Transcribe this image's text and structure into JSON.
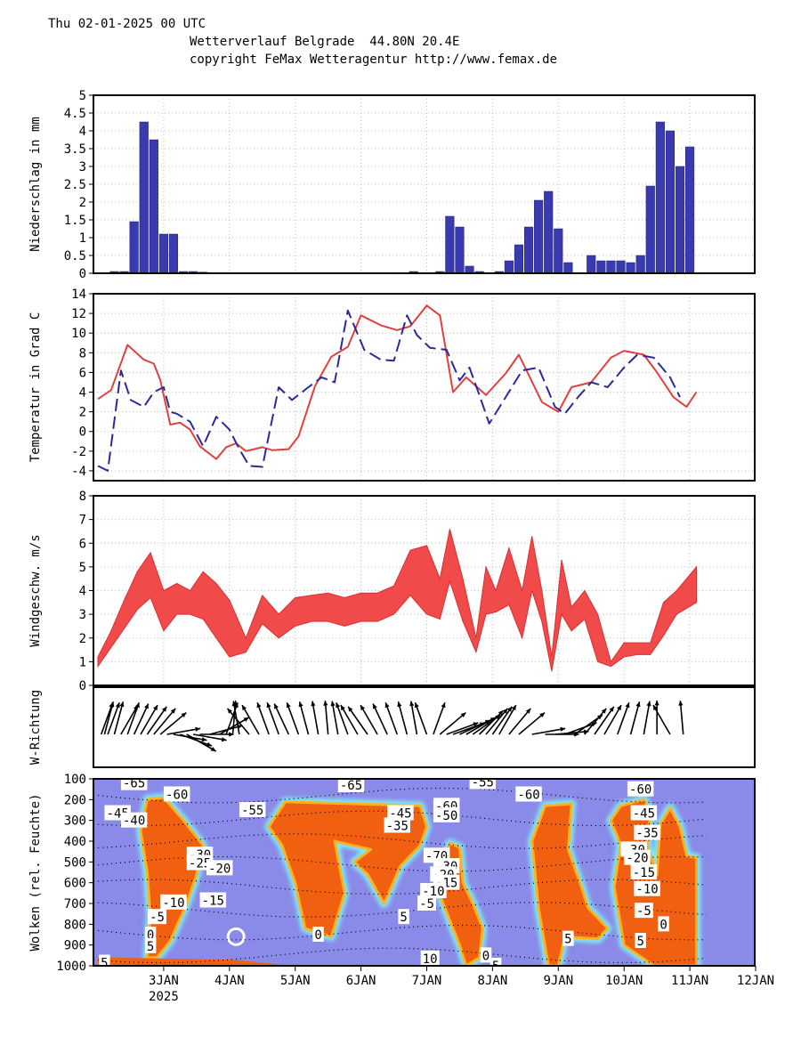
{
  "header": {
    "datetime": "Thu 02-01-2025 00 UTC",
    "title": "Wetterverlauf Belgrade  44.80N 20.4E",
    "copyright": "copyright FeMax Wetteragentur http://www.femax.de"
  },
  "colors": {
    "precip_bar": "#3a3ab0",
    "temp_red": "#e04040",
    "temp_blue": "#2a2a9a",
    "wind_band": "#f04a4a",
    "cloud_bg": "#8a8ae8",
    "cloud_orange": "#f06010",
    "cloud_cyan": "#80e8f0"
  },
  "x_axis": {
    "labels": [
      "3JAN",
      "4JAN",
      "5JAN",
      "6JAN",
      "7JAN",
      "8JAN",
      "9JAN",
      "10JAN",
      "11JAN",
      "12JAN"
    ],
    "year_label": "2025"
  },
  "chart_data": [
    {
      "type": "bar",
      "ylabel": "Niederschlag in mm",
      "ylim": [
        0,
        5
      ],
      "yticks": [
        "0",
        "0.5",
        "1",
        "1.5",
        "2",
        "2.5",
        "3",
        "3.5",
        "4",
        "4.5",
        "5"
      ],
      "x_unit": "days since 2JAN 00 UTC",
      "x": [
        0.1,
        0.25,
        0.4,
        0.55,
        0.7,
        0.85,
        1.0,
        1.15,
        1.3,
        1.45,
        1.6,
        4.8,
        5.2,
        5.35,
        5.5,
        5.65,
        5.8,
        6.1,
        6.25,
        6.4,
        6.55,
        6.7,
        6.85,
        7.0,
        7.15,
        7.5,
        7.65,
        7.8,
        7.95,
        8.1,
        8.25,
        8.4,
        8.55,
        8.7,
        8.85,
        9.0
      ],
      "values": [
        0.02,
        0.05,
        0.05,
        1.45,
        4.25,
        3.75,
        1.1,
        1.1,
        0.05,
        0.05,
        0.03,
        0.05,
        0.05,
        1.6,
        1.3,
        0.2,
        0.05,
        0.05,
        0.35,
        0.8,
        1.3,
        2.05,
        2.3,
        1.25,
        0.3,
        0.5,
        0.35,
        0.35,
        0.35,
        0.3,
        0.5,
        2.45,
        4.25,
        4.0,
        3.0,
        3.55
      ]
    },
    {
      "type": "line",
      "ylabel": "Temperatur in Grad C",
      "ylim": [
        -5,
        14
      ],
      "yticks": [
        "-4",
        "-2",
        "0",
        "2",
        "4",
        "6",
        "8",
        "10",
        "12",
        "14"
      ],
      "series": [
        {
          "x": [
            0,
            0.2,
            0.45,
            0.7,
            0.85,
            0.95,
            1.1,
            1.25,
            1.4,
            1.55,
            1.8,
            1.95,
            2.1,
            2.25,
            2.5,
            2.65,
            2.9,
            3.05,
            3.3,
            3.55,
            3.8,
            4.0,
            4.3,
            4.55,
            4.75,
            5.0,
            5.2,
            5.4,
            5.6,
            5.9,
            6.2,
            6.4,
            6.75,
            7.0,
            7.2,
            7.5,
            7.8,
            8.0,
            8.3,
            8.5,
            8.75,
            8.95,
            9.1
          ],
          "values": [
            3.3,
            4.2,
            8.8,
            7.3,
            6.9,
            5.2,
            0.7,
            0.9,
            0.2,
            -1.5,
            -2.8,
            -1.6,
            -1.2,
            -2.0,
            -1.6,
            -1.9,
            -1.8,
            -0.5,
            4.6,
            7.6,
            8.6,
            11.8,
            10.8,
            10.3,
            10.7,
            12.8,
            11.8,
            4.0,
            5.5,
            3.7,
            5.9,
            7.8,
            3.0,
            2.0,
            4.5,
            5.0,
            7.5,
            8.2,
            7.8,
            6.0,
            3.5,
            2.5,
            4.0
          ]
        },
        {
          "x": [
            0,
            0.15,
            0.35,
            0.5,
            0.7,
            0.85,
            1.0,
            1.1,
            1.2,
            1.4,
            1.6,
            1.8,
            2.0,
            2.15,
            2.3,
            2.5,
            2.75,
            2.95,
            3.2,
            3.4,
            3.6,
            3.8,
            4.05,
            4.3,
            4.5,
            4.7,
            4.85,
            5.05,
            5.3,
            5.5,
            5.65,
            5.8,
            5.95,
            6.2,
            6.45,
            6.7,
            6.95,
            7.1,
            7.3,
            7.5,
            7.75,
            8.0,
            8.2,
            8.45,
            8.7,
            8.85
          ],
          "values": [
            -3.5,
            -4.0,
            6.2,
            3.2,
            2.5,
            4.0,
            4.5,
            2.0,
            1.8,
            1.0,
            -1.5,
            1.5,
            0.2,
            -1.8,
            -3.5,
            -3.6,
            4.5,
            3.2,
            4.5,
            5.5,
            5.0,
            12.3,
            8.3,
            7.3,
            7.2,
            11.8,
            9.8,
            8.5,
            8.3,
            5.2,
            6.5,
            3.7,
            0.8,
            3.5,
            6.2,
            6.5,
            2.5,
            1.8,
            3.5,
            5.0,
            4.5,
            6.5,
            7.8,
            7.5,
            5.5,
            3.5
          ]
        }
      ]
    },
    {
      "type": "area",
      "ylabel": "Windgeschw. m/s",
      "ylim": [
        0,
        8
      ],
      "yticks": [
        "0",
        "1",
        "2",
        "3",
        "4",
        "5",
        "6",
        "7",
        "8"
      ],
      "x": [
        0,
        0.2,
        0.4,
        0.6,
        0.8,
        1.0,
        1.2,
        1.4,
        1.6,
        1.8,
        2.0,
        2.25,
        2.5,
        2.75,
        3.0,
        3.25,
        3.5,
        3.75,
        4.0,
        4.25,
        4.5,
        4.75,
        5.0,
        5.2,
        5.35,
        5.55,
        5.75,
        5.9,
        6.05,
        6.25,
        6.45,
        6.6,
        6.75,
        6.9,
        7.05,
        7.2,
        7.4,
        7.6,
        7.8,
        8.0,
        8.2,
        8.4,
        8.6,
        8.8,
        9.1
      ],
      "upper": [
        1.2,
        2.3,
        3.6,
        4.8,
        5.6,
        4.0,
        4.3,
        4.0,
        4.8,
        4.3,
        3.6,
        2.0,
        3.8,
        3.0,
        3.7,
        3.8,
        3.9,
        3.7,
        3.9,
        3.9,
        4.2,
        5.7,
        5.9,
        4.5,
        6.6,
        4.5,
        2.0,
        5.0,
        4.0,
        5.8,
        4.0,
        6.3,
        4.0,
        1.2,
        5.3,
        3.3,
        4.0,
        3.0,
        1.0,
        1.8,
        1.8,
        1.8,
        3.5,
        4.0,
        5.0
      ],
      "lower": [
        0.8,
        1.6,
        2.4,
        3.2,
        3.7,
        2.3,
        3.0,
        3.0,
        2.8,
        2.0,
        1.2,
        1.4,
        2.6,
        2.0,
        2.5,
        2.7,
        2.7,
        2.5,
        2.7,
        2.7,
        3.0,
        3.8,
        3.0,
        2.8,
        4.4,
        2.7,
        1.4,
        3.0,
        3.1,
        3.4,
        2.0,
        4.0,
        2.7,
        0.6,
        3.0,
        2.3,
        2.8,
        1.0,
        0.8,
        1.2,
        1.3,
        1.3,
        2.1,
        3.0,
        3.5
      ]
    }
  ],
  "wind_direction": {
    "ylabel": "W-Richtung",
    "arrows": [
      [
        0.05,
        200
      ],
      [
        0.1,
        195
      ],
      [
        0.15,
        200
      ],
      [
        0.25,
        195
      ],
      [
        0.35,
        210
      ],
      [
        0.45,
        200
      ],
      [
        0.55,
        205
      ],
      [
        0.65,
        210
      ],
      [
        0.75,
        215
      ],
      [
        0.85,
        220
      ],
      [
        0.95,
        230
      ],
      [
        1.05,
        260
      ],
      [
        1.15,
        280
      ],
      [
        1.25,
        290
      ],
      [
        1.35,
        300
      ],
      [
        1.45,
        280
      ],
      [
        1.55,
        270
      ],
      [
        1.7,
        255
      ],
      [
        1.85,
        240
      ],
      [
        1.95,
        200
      ],
      [
        2.05,
        185
      ],
      [
        2.15,
        170
      ],
      [
        2.3,
        140
      ],
      [
        2.45,
        150
      ],
      [
        2.6,
        160
      ],
      [
        2.75,
        160
      ],
      [
        2.9,
        155
      ],
      [
        3.05,
        160
      ],
      [
        3.2,
        165
      ],
      [
        3.35,
        170
      ],
      [
        3.5,
        175
      ],
      [
        3.65,
        170
      ],
      [
        3.8,
        160
      ],
      [
        3.95,
        150
      ],
      [
        4.1,
        145
      ],
      [
        4.25,
        150
      ],
      [
        4.4,
        155
      ],
      [
        4.55,
        160
      ],
      [
        4.7,
        165
      ],
      [
        4.85,
        170
      ],
      [
        5.0,
        160
      ],
      [
        5.1,
        200
      ],
      [
        5.2,
        230
      ],
      [
        5.3,
        250
      ],
      [
        5.4,
        250
      ],
      [
        5.5,
        245
      ],
      [
        5.6,
        240
      ],
      [
        5.7,
        235
      ],
      [
        5.8,
        225
      ],
      [
        5.9,
        220
      ],
      [
        6.0,
        215
      ],
      [
        6.1,
        210
      ],
      [
        6.25,
        220
      ],
      [
        6.4,
        230
      ],
      [
        6.6,
        260
      ],
      [
        6.8,
        270
      ],
      [
        6.95,
        265
      ],
      [
        7.1,
        250
      ],
      [
        7.25,
        235
      ],
      [
        7.4,
        220
      ],
      [
        7.55,
        215
      ],
      [
        7.7,
        210
      ],
      [
        7.9,
        200
      ],
      [
        8.1,
        195
      ],
      [
        8.3,
        190
      ],
      [
        8.5,
        180
      ],
      [
        8.7,
        150
      ],
      [
        8.9,
        175
      ]
    ]
  },
  "clouds": {
    "ylabel": "Wolken (rel. Feuchte)",
    "ylim": [
      1000,
      100
    ],
    "yticks": [
      "100",
      "200",
      "300",
      "400",
      "500",
      "600",
      "700",
      "800",
      "900",
      "1000"
    ],
    "contour_labels": [
      {
        "text": "-65",
        "x": 0.55,
        "p": 120
      },
      {
        "text": "-60",
        "x": 1.2,
        "p": 175
      },
      {
        "text": "-45",
        "x": 0.3,
        "p": 265
      },
      {
        "text": "-40",
        "x": 0.55,
        "p": 300
      },
      {
        "text": "-30",
        "x": 1.55,
        "p": 465
      },
      {
        "text": "-25",
        "x": 1.55,
        "p": 505
      },
      {
        "text": "-20",
        "x": 1.85,
        "p": 530
      },
      {
        "text": "-15",
        "x": 1.75,
        "p": 685
      },
      {
        "text": "-10",
        "x": 1.15,
        "p": 695
      },
      {
        "text": "-5",
        "x": 0.9,
        "p": 765
      },
      {
        "text": "0",
        "x": 0.8,
        "p": 850
      },
      {
        "text": "5",
        "x": 0.8,
        "p": 905
      },
      {
        "text": "5",
        "x": 0.1,
        "p": 985
      },
      {
        "text": "-55",
        "x": 2.35,
        "p": 250
      },
      {
        "text": "-65",
        "x": 3.85,
        "p": 130
      },
      {
        "text": "-45",
        "x": 4.6,
        "p": 265
      },
      {
        "text": "-35",
        "x": 4.55,
        "p": 325
      },
      {
        "text": "-60",
        "x": 5.3,
        "p": 230
      },
      {
        "text": "-50",
        "x": 5.3,
        "p": 275
      },
      {
        "text": "-70",
        "x": 5.15,
        "p": 470
      },
      {
        "text": "-30",
        "x": 5.3,
        "p": 520
      },
      {
        "text": "-20",
        "x": 5.25,
        "p": 560
      },
      {
        "text": "-15",
        "x": 5.3,
        "p": 600
      },
      {
        "text": "-10",
        "x": 5.1,
        "p": 640
      },
      {
        "text": "-5",
        "x": 5.0,
        "p": 700
      },
      {
        "text": "5",
        "x": 4.65,
        "p": 765
      },
      {
        "text": "0",
        "x": 3.35,
        "p": 850
      },
      {
        "text": "10",
        "x": 5.05,
        "p": 965
      },
      {
        "text": "-55",
        "x": 5.85,
        "p": 115
      },
      {
        "text": "0",
        "x": 5.9,
        "p": 950
      },
      {
        "text": "5",
        "x": 6.05,
        "p": 1000
      },
      {
        "text": "-60",
        "x": 6.55,
        "p": 175
      },
      {
        "text": "5",
        "x": 7.15,
        "p": 870
      },
      {
        "text": "-60",
        "x": 8.25,
        "p": 150
      },
      {
        "text": "-45",
        "x": 8.3,
        "p": 265
      },
      {
        "text": "-35",
        "x": 8.35,
        "p": 360
      },
      {
        "text": "-30",
        "x": 8.15,
        "p": 440
      },
      {
        "text": "-20",
        "x": 8.2,
        "p": 480
      },
      {
        "text": "-15",
        "x": 8.3,
        "p": 550
      },
      {
        "text": "-10",
        "x": 8.35,
        "p": 630
      },
      {
        "text": "-5",
        "x": 8.3,
        "p": 735
      },
      {
        "text": "0",
        "x": 8.6,
        "p": 800
      },
      {
        "text": "5",
        "x": 8.25,
        "p": 880
      }
    ]
  }
}
